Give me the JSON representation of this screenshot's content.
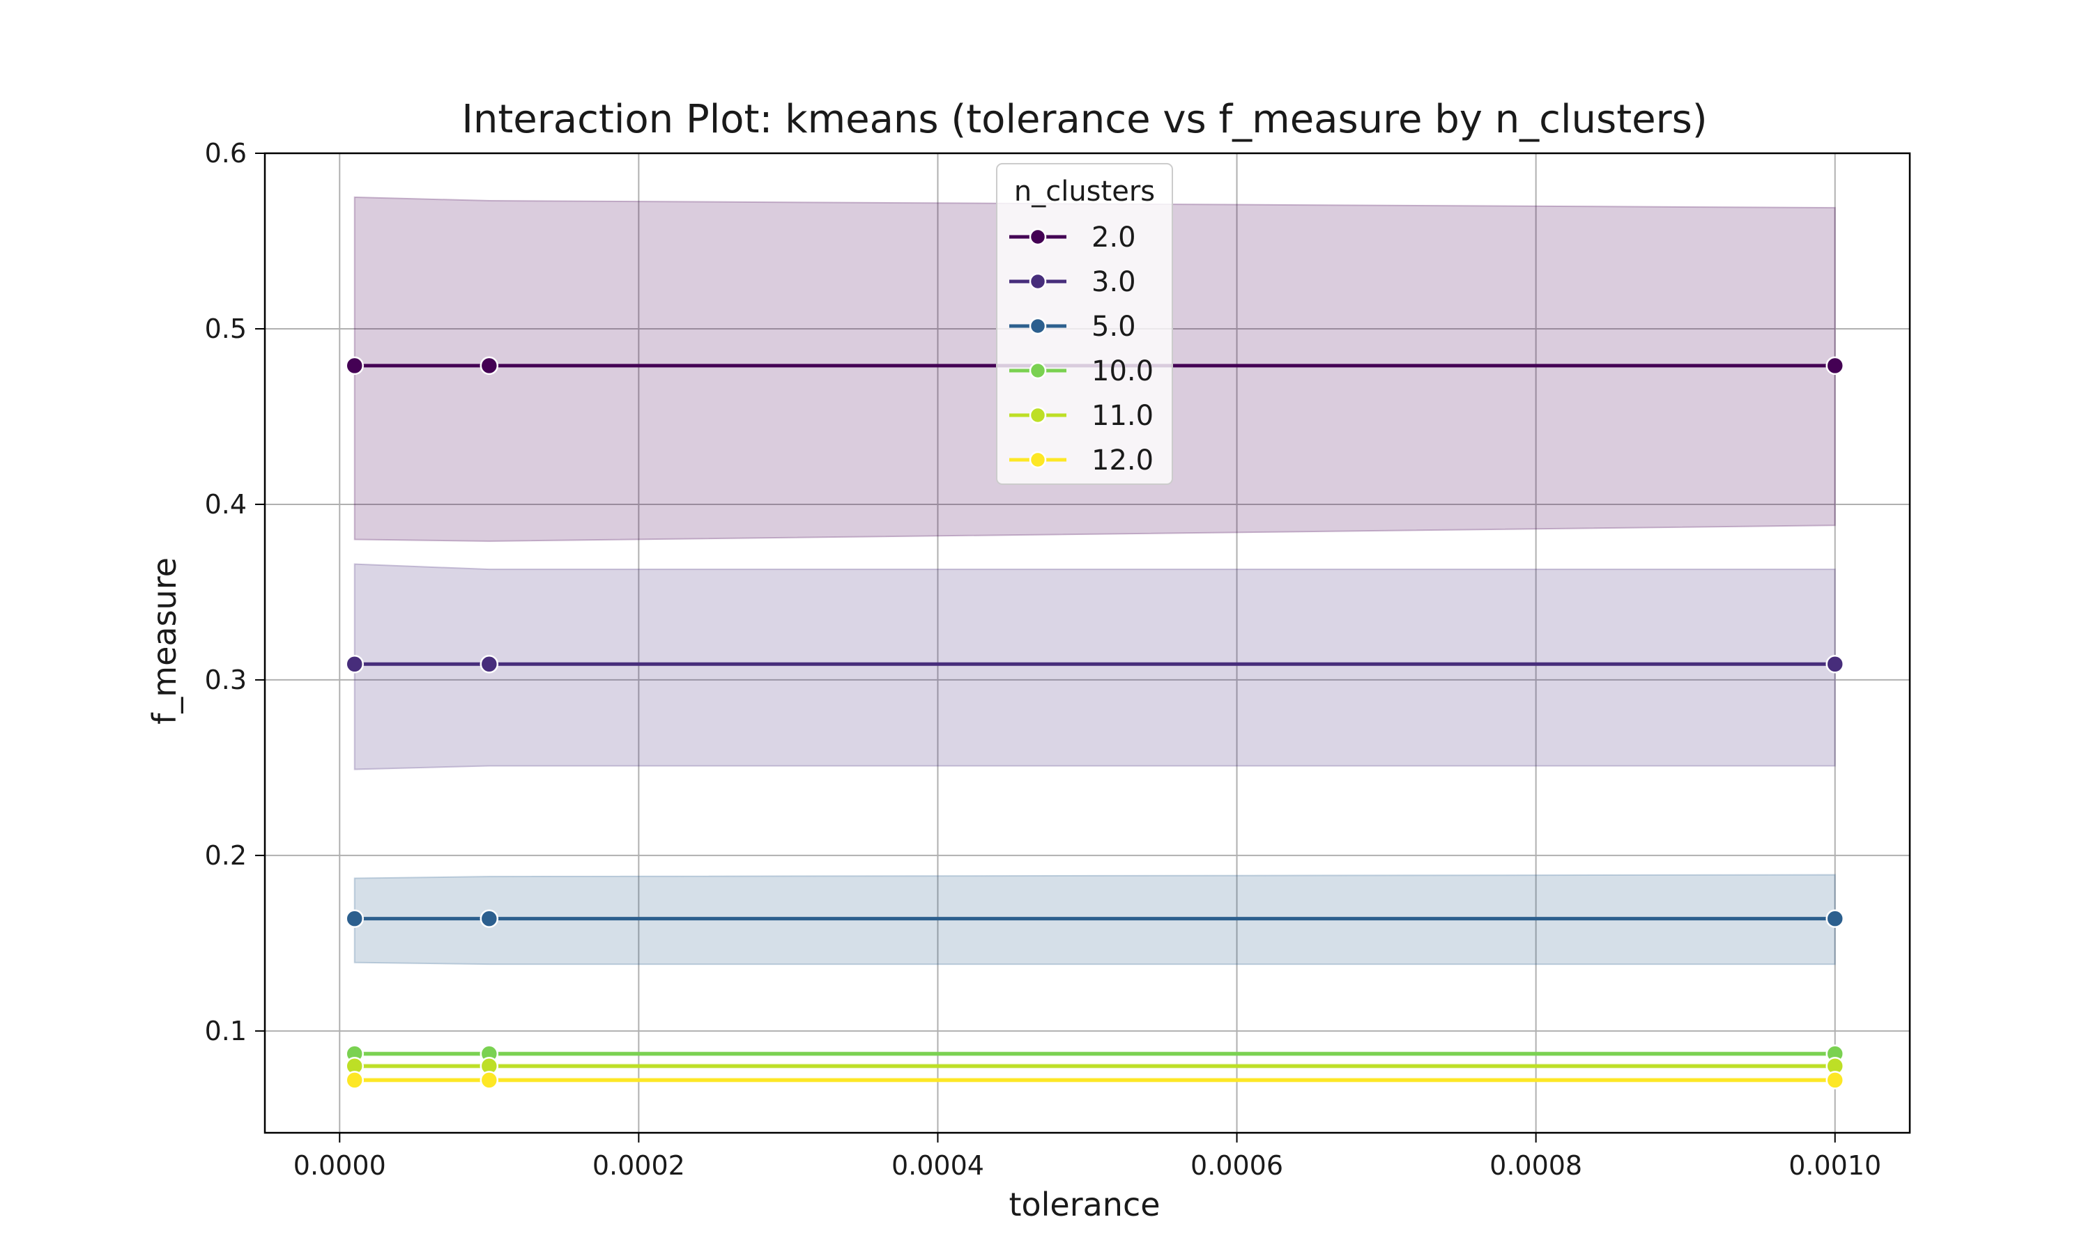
{
  "chart_data": {
    "type": "line",
    "title": "Interaction Plot: kmeans (tolerance vs f_measure by n_clusters)",
    "xlabel": "tolerance",
    "ylabel": "f_measure",
    "xlim": [
      -5e-05,
      0.00105
    ],
    "ylim": [
      0.042,
      0.6
    ],
    "xticks": [
      0.0,
      0.0002,
      0.0004,
      0.0006,
      0.0008,
      0.001
    ],
    "xtick_labels": [
      "0.0000",
      "0.0002",
      "0.0004",
      "0.0006",
      "0.0008",
      "0.0010"
    ],
    "yticks": [
      0.1,
      0.2,
      0.3,
      0.4,
      0.5,
      0.6
    ],
    "ytick_labels": [
      "0.1",
      "0.2",
      "0.3",
      "0.4",
      "0.5",
      "0.6"
    ],
    "grid": true,
    "legend": {
      "title": "n_clusters",
      "placement": "upper-center"
    },
    "x": [
      1e-05,
      0.0001,
      0.001
    ],
    "series": [
      {
        "name": "2.0",
        "color": "#440154",
        "values": [
          0.479,
          0.479,
          0.479
        ],
        "ci_upper": [
          0.575,
          0.573,
          0.569
        ],
        "ci_lower": [
          0.38,
          0.379,
          0.388
        ]
      },
      {
        "name": "3.0",
        "color": "#472d7b",
        "values": [
          0.309,
          0.309,
          0.309
        ],
        "ci_upper": [
          0.366,
          0.363,
          0.363
        ],
        "ci_lower": [
          0.249,
          0.251,
          0.251
        ]
      },
      {
        "name": "5.0",
        "color": "#2c5f8e",
        "values": [
          0.164,
          0.164,
          0.164
        ],
        "ci_upper": [
          0.187,
          0.188,
          0.189
        ],
        "ci_lower": [
          0.139,
          0.138,
          0.138
        ]
      },
      {
        "name": "10.0",
        "color": "#7ad151",
        "values": [
          0.087,
          0.087,
          0.087
        ],
        "ci_upper": [
          0.088,
          0.088,
          0.088
        ],
        "ci_lower": [
          0.086,
          0.086,
          0.086
        ]
      },
      {
        "name": "11.0",
        "color": "#bddf26",
        "values": [
          0.08,
          0.08,
          0.08
        ],
        "ci_upper": [
          0.081,
          0.081,
          0.081
        ],
        "ci_lower": [
          0.079,
          0.079,
          0.079
        ]
      },
      {
        "name": "12.0",
        "color": "#fde725",
        "values": [
          0.072,
          0.072,
          0.072
        ],
        "ci_upper": [
          0.073,
          0.073,
          0.073
        ],
        "ci_lower": [
          0.071,
          0.071,
          0.071
        ]
      }
    ]
  }
}
